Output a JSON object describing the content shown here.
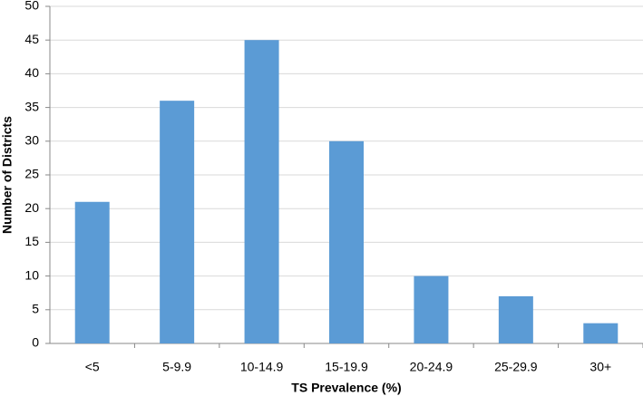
{
  "chart_data": {
    "type": "bar",
    "x_label": "TS Prevalence (%)",
    "y_label": "Number of Districts",
    "categories": [
      "<5",
      "5-9.9",
      "10-14.9",
      "15-19.9",
      "20-24.9",
      "25-29.9",
      "30+"
    ],
    "values": [
      21,
      36,
      45,
      30,
      10,
      7,
      3
    ],
    "color": "#5b9bd5",
    "ylim": [
      0,
      50
    ],
    "yticks": [
      0,
      5,
      10,
      15,
      20,
      25,
      30,
      35,
      40,
      45,
      50
    ],
    "grid": true
  }
}
